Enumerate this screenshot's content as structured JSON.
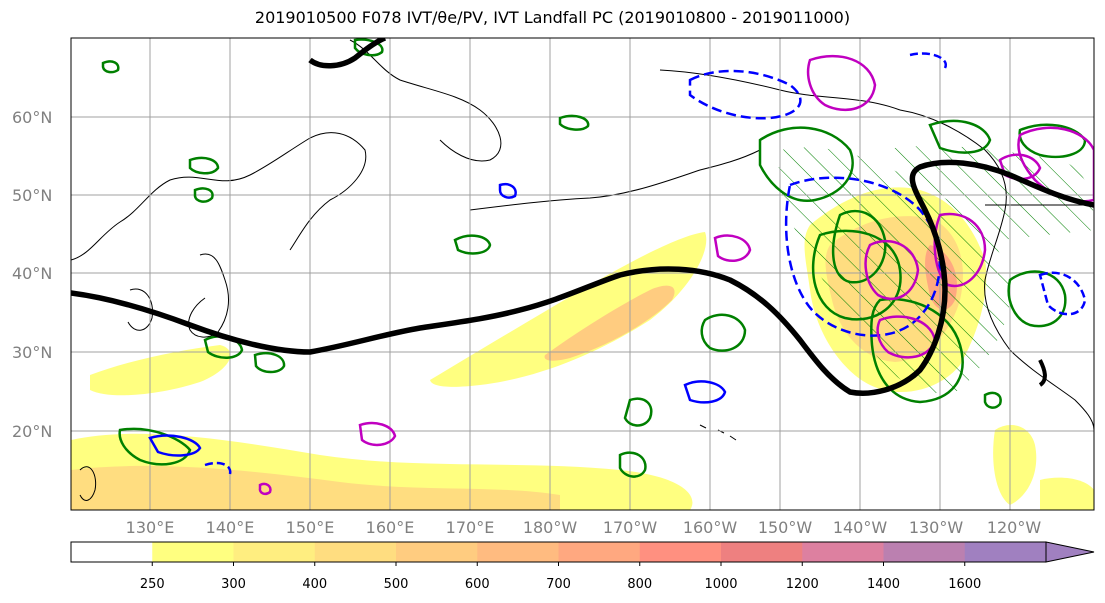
{
  "title": "2019010500 F078 IVT/θe/PV, IVT Landfall PC (2019010800 - 2019011000)",
  "latitude_labels": [
    "20°N",
    "30°N",
    "40°N",
    "50°N",
    "60°N"
  ],
  "longitude_labels": [
    "130°E",
    "140°E",
    "150°E",
    "160°E",
    "170°E",
    "180°W",
    "170°W",
    "160°W",
    "150°W",
    "140°W",
    "130°W",
    "120°W"
  ],
  "colorbar": {
    "levels": [
      "250",
      "300",
      "400",
      "500",
      "600",
      "700",
      "800",
      "1000",
      "1200",
      "1400",
      "1600"
    ],
    "colors": [
      "#ffffff",
      "#ffff80",
      "#ffee80",
      "#ffdd80",
      "#ffcc80",
      "#ffbb80",
      "#ffa880",
      "#ff9080",
      "#ee8080",
      "#dd80a0",
      "#bb80b0",
      "#a080c0"
    ]
  },
  "contour_colors": {
    "jet": "#000000",
    "theta_e": "#008000",
    "pv_positive": "#c000c0",
    "pv_negative": "#0000ff"
  }
}
